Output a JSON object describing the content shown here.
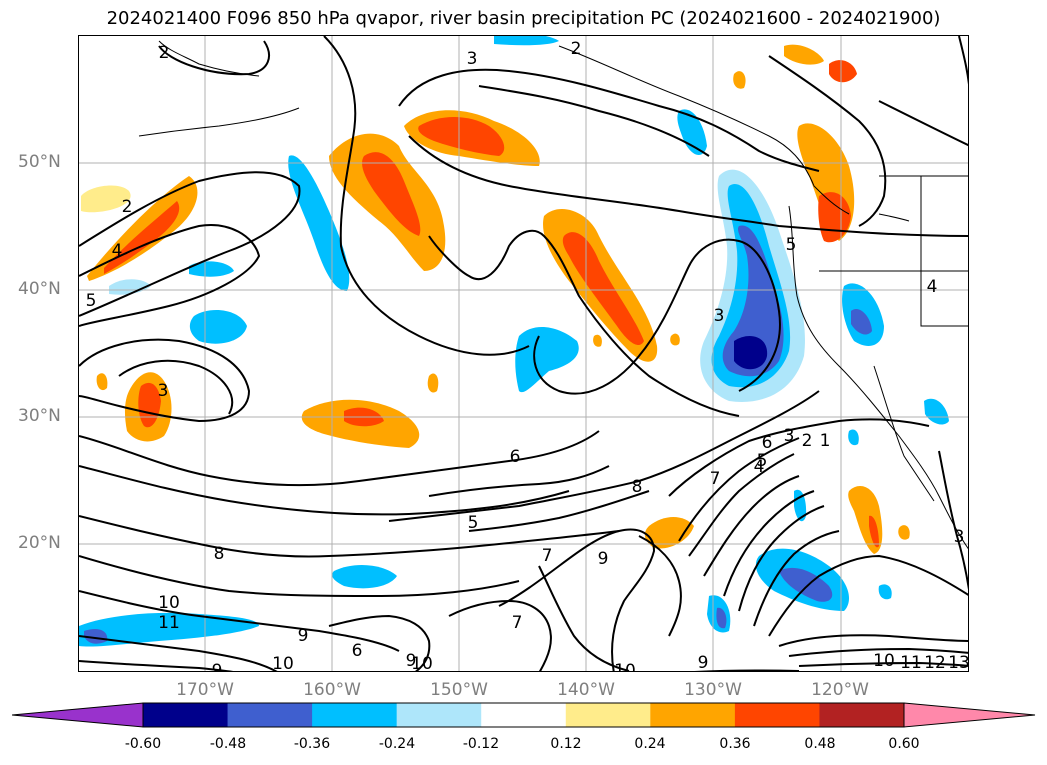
{
  "title": "2024021400 F096 850 hPa qvapor, river basin precipitation PC (2024021600 - 2024021900)",
  "lat_labels": [
    "50°N",
    "40°N",
    "30°N",
    "20°N"
  ],
  "lon_labels": [
    "170°W",
    "160°W",
    "150°W",
    "140°W",
    "130°W",
    "120°W"
  ],
  "colorbar": {
    "colors": [
      "#9932cc",
      "#00008b",
      "#3f5fcf",
      "#00bfff",
      "#aee6fa",
      "#ffffff",
      "#ffec8b",
      "#ffa500",
      "#ff4500",
      "#b22222",
      "#ff88aa"
    ],
    "ticks": [
      "-0.60",
      "-0.48",
      "-0.36",
      "-0.24",
      "-0.12",
      "0.12",
      "0.24",
      "0.36",
      "0.48",
      "0.60"
    ]
  },
  "contour_labels": [
    "2",
    "3",
    "2",
    "2",
    "4",
    "5",
    "3",
    "5",
    "3",
    "4",
    "6",
    "8",
    "5",
    "8",
    "10",
    "11",
    "9",
    "6",
    "9",
    "7",
    "7",
    "9",
    "10",
    "9",
    "7",
    "6",
    "5",
    "4",
    "3",
    "2",
    "1",
    "10",
    "11",
    "12",
    "13",
    "3",
    "9",
    "10",
    "10"
  ]
}
